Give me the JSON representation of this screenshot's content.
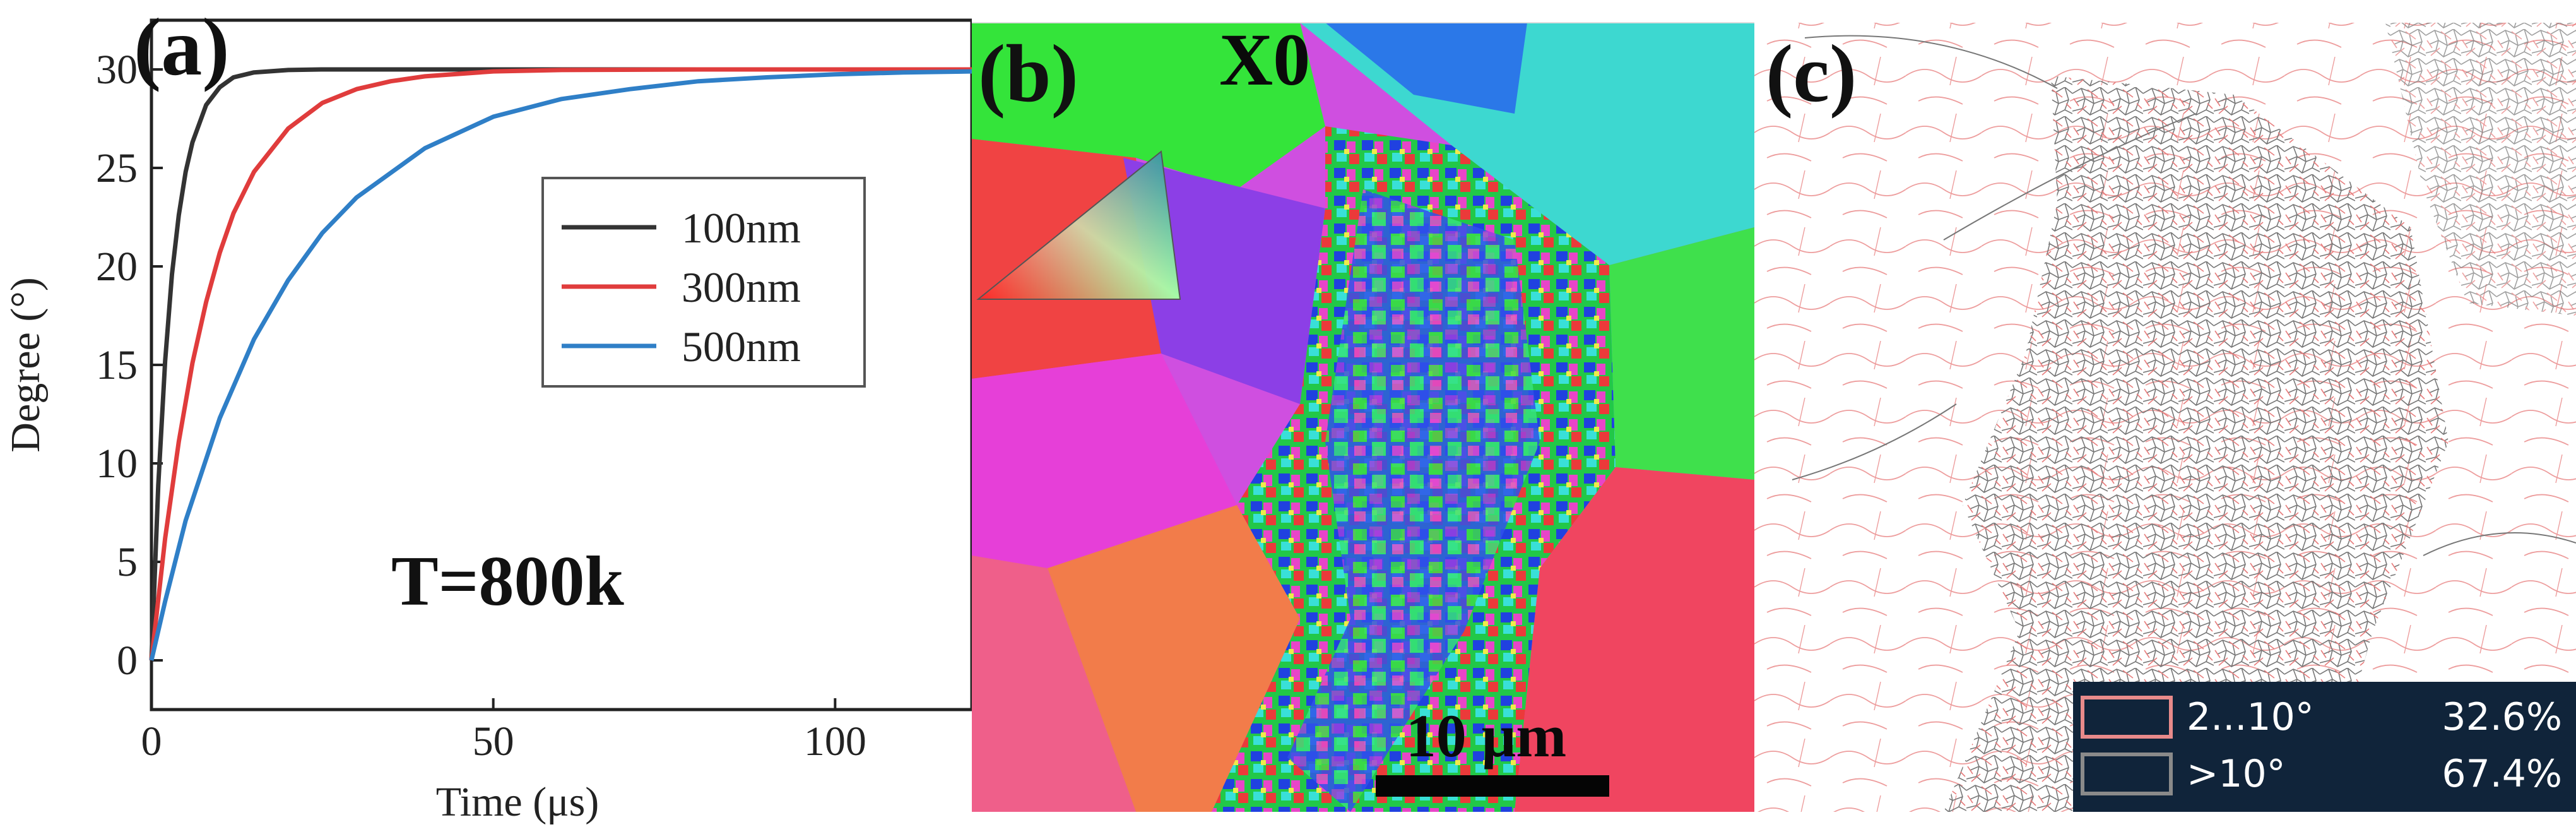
{
  "figure": {
    "panels": [
      {
        "label": "(a)"
      },
      {
        "label": "(b)"
      },
      {
        "label": "(c)"
      }
    ],
    "panel_b": {
      "sample_label": "X0",
      "scale_bar": "10 μm"
    },
    "panel_c": {
      "legend": [
        {
          "range": "2...10°",
          "fraction": "32.6%",
          "color": "#e88a8a"
        },
        {
          "range": ">10°",
          "fraction": "67.4%",
          "color": "#6a6a6a"
        }
      ]
    }
  },
  "chart_data": {
    "type": "line",
    "title": "",
    "xlabel": "Time (μs)",
    "ylabel": "Degree (°)",
    "xlim": [
      0,
      120
    ],
    "ylim": [
      -2.5,
      32.5
    ],
    "x_ticks": [
      "0",
      "50",
      "100"
    ],
    "y_ticks": [
      "0",
      "5",
      "10",
      "15",
      "20",
      "25",
      "30"
    ],
    "x_tick_values": [
      0,
      50,
      100
    ],
    "y_tick_values": [
      0,
      5,
      10,
      15,
      20,
      25,
      30
    ],
    "grid": false,
    "legend_position": "right",
    "annotation": "T=800k",
    "series": [
      {
        "name": "100nm",
        "color": "#333333",
        "x": [
          0,
          1,
          2,
          3,
          4,
          5,
          6,
          8,
          10,
          12,
          15,
          20,
          25,
          30,
          40,
          50,
          60,
          80,
          100,
          120
        ],
        "y": [
          0,
          8.9,
          15.2,
          19.6,
          22.6,
          24.8,
          26.3,
          28.2,
          29.1,
          29.6,
          29.85,
          29.97,
          30,
          30,
          30,
          30,
          30,
          30,
          30,
          30
        ]
      },
      {
        "name": "300nm",
        "color": "#e03c3c",
        "x": [
          0,
          2,
          4,
          6,
          8,
          10,
          12,
          15,
          20,
          25,
          30,
          35,
          40,
          50,
          60,
          80,
          100,
          120
        ],
        "y": [
          0,
          6.2,
          11.1,
          15.1,
          18.2,
          20.7,
          22.7,
          24.8,
          27.0,
          28.3,
          29.0,
          29.4,
          29.65,
          29.9,
          29.97,
          30,
          30,
          30
        ]
      },
      {
        "name": "500nm",
        "color": "#2f7fc7",
        "x": [
          0,
          2,
          5,
          10,
          15,
          20,
          25,
          30,
          40,
          50,
          60,
          70,
          80,
          90,
          100,
          110,
          120
        ],
        "y": [
          0,
          3.0,
          7.1,
          12.3,
          16.3,
          19.3,
          21.7,
          23.5,
          26.0,
          27.6,
          28.5,
          29.0,
          29.4,
          29.6,
          29.75,
          29.85,
          29.9
        ]
      }
    ]
  }
}
